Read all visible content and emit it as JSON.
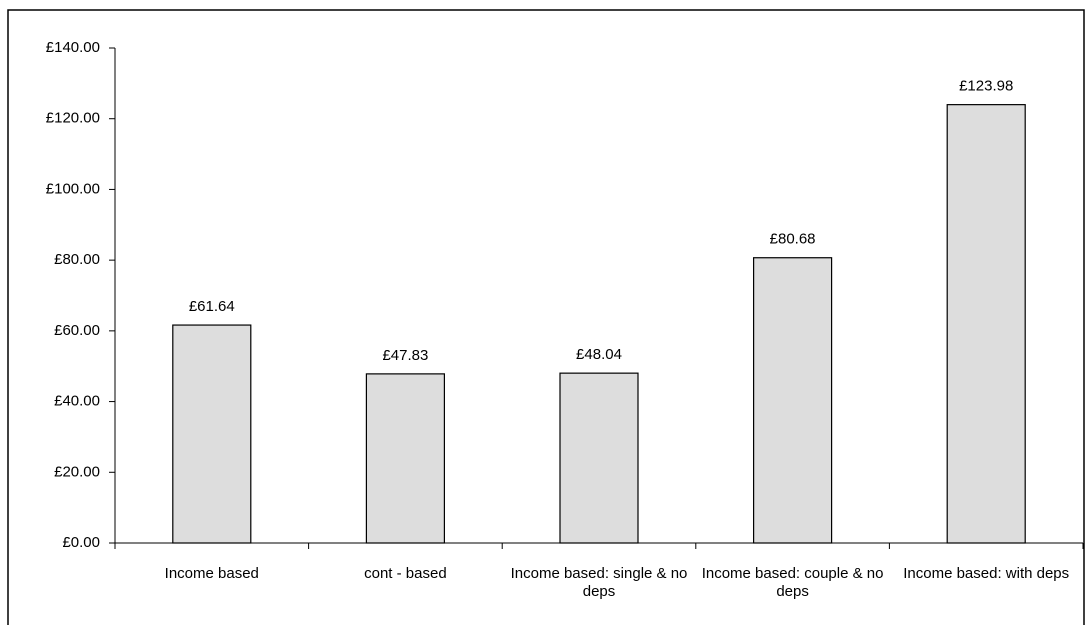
{
  "chart_data": {
    "type": "bar",
    "categories": [
      "Income based",
      "cont - based",
      "Income based: single & no deps",
      "Income based: couple & no deps",
      "Income based: with deps"
    ],
    "values": [
      61.64,
      47.83,
      48.04,
      80.68,
      123.98
    ],
    "value_labels": [
      "£61.64",
      "£47.83",
      "£48.04",
      "£80.68",
      "£123.98"
    ],
    "color": "#dddddd",
    "ylim": [
      0,
      140
    ],
    "yticks": [
      {
        "value": 0,
        "label": "£0.00"
      },
      {
        "value": 20,
        "label": "£20.00"
      },
      {
        "value": 40,
        "label": "£40.00"
      },
      {
        "value": 60,
        "label": "£60.00"
      },
      {
        "value": 80,
        "label": "£80.00"
      },
      {
        "value": 100,
        "label": "£100.00"
      },
      {
        "value": 120,
        "label": "£120.00"
      },
      {
        "value": 140,
        "label": "£140.00"
      }
    ],
    "grid": false
  }
}
